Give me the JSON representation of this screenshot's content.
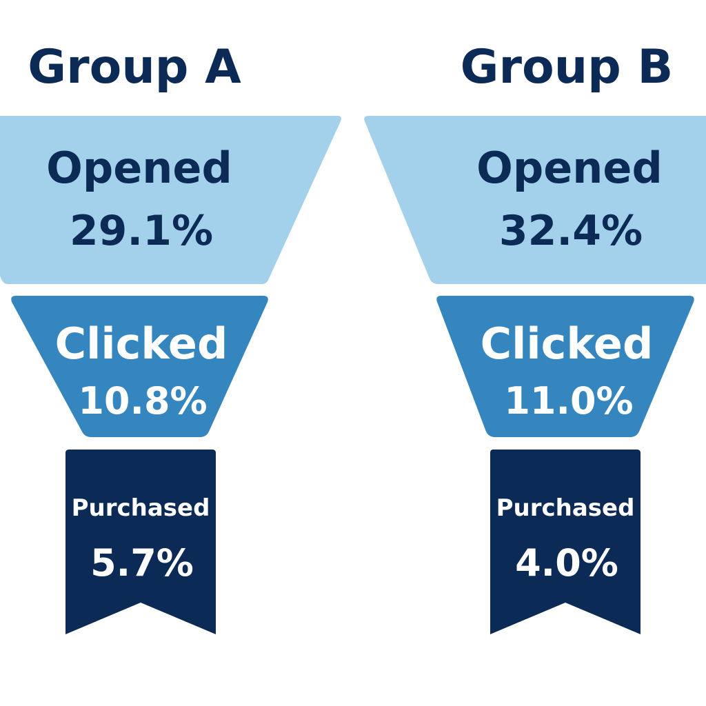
{
  "chart_data": {
    "type": "funnel",
    "series": [
      {
        "name": "Group A",
        "stages": [
          {
            "label": "Opened",
            "value": 29.1,
            "display": "29.1%"
          },
          {
            "label": "Clicked",
            "value": 10.8,
            "display": "10.8%"
          },
          {
            "label": "Purchased",
            "value": 5.7,
            "display": "5.7%"
          }
        ]
      },
      {
        "name": "Group B",
        "stages": [
          {
            "label": "Opened",
            "value": 32.4,
            "display": "32.4%"
          },
          {
            "label": "Clicked",
            "value": 11.0,
            "display": "11.0%"
          },
          {
            "label": "Purchased",
            "value": 4.0,
            "display": "4.0%"
          }
        ]
      }
    ],
    "unit": "%"
  },
  "colors": {
    "title": "#0b2a55",
    "opened_fill": "#a3d0eb",
    "opened_text": "#0b2a55",
    "clicked_fill": "#3585bf",
    "clicked_text": "#ffffff",
    "purchased_fill": "#0b2a55",
    "purchased_text": "#ffffff",
    "background": "#ffffff"
  }
}
